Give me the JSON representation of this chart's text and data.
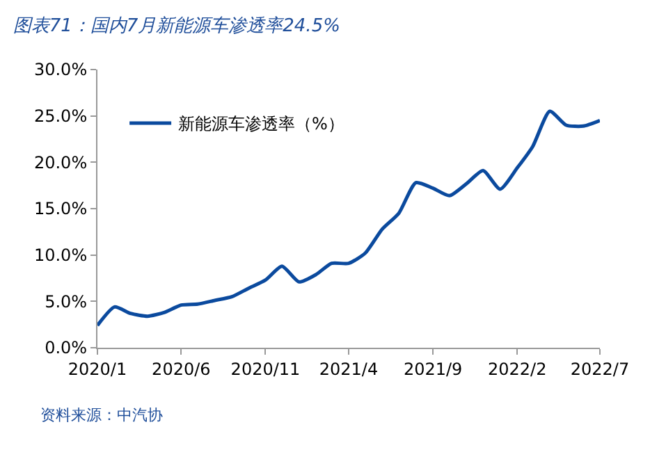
{
  "chart_data": {
    "type": "line",
    "title": "图表71：国内7月新能源车渗透率24.5%",
    "annotations": [
      "资料来源：中汽协"
    ],
    "x": [
      "2020-01",
      "2020-02",
      "2020-03",
      "2020-04",
      "2020-05",
      "2020-06",
      "2020-07",
      "2020-08",
      "2020-09",
      "2020-10",
      "2020-11",
      "2020-12",
      "2021-01",
      "2021-02",
      "2021-03",
      "2021-04",
      "2021-05",
      "2021-06",
      "2021-07",
      "2021-08",
      "2021-09",
      "2021-10",
      "2021-11",
      "2021-12",
      "2022-01",
      "2022-02",
      "2022-03",
      "2022-04",
      "2022-05",
      "2022-06",
      "2022-07"
    ],
    "series": [
      {
        "name": "新能源车渗透率（%）",
        "color": "#0b4a9e",
        "values": [
          2.4,
          4.4,
          3.7,
          3.4,
          3.8,
          4.6,
          4.7,
          5.1,
          5.5,
          6.4,
          7.3,
          8.8,
          7.1,
          7.9,
          9.1,
          9.1,
          10.2,
          12.8,
          14.5,
          17.8,
          17.2,
          16.4,
          17.7,
          19.1,
          17.1,
          19.4,
          21.7,
          25.5,
          24.0,
          23.9,
          24.5
        ]
      }
    ],
    "xlim": [
      "2020-01",
      "2022-07"
    ],
    "xticks": [
      {
        "value": "2020-01",
        "label": "2020/1"
      },
      {
        "value": "2020-06",
        "label": "2020/6"
      },
      {
        "value": "2020-11",
        "label": "2020/11"
      },
      {
        "value": "2021-04",
        "label": "2021/4"
      },
      {
        "value": "2021-09",
        "label": "2021/9"
      },
      {
        "value": "2022-02",
        "label": "2022/2"
      },
      {
        "value": "2022-07",
        "label": "2022/7"
      }
    ],
    "ylim": [
      0,
      30
    ],
    "yticks": [
      {
        "value": 0,
        "label": "0.0%"
      },
      {
        "value": 5,
        "label": "5.0%"
      },
      {
        "value": 10,
        "label": "10.0%"
      },
      {
        "value": 15,
        "label": "15.0%"
      },
      {
        "value": 20,
        "label": "20.0%"
      },
      {
        "value": 25,
        "label": "25.0%"
      },
      {
        "value": 30,
        "label": "30.0%"
      }
    ],
    "legend": "top left",
    "marker": "none",
    "line_style": "solid"
  }
}
